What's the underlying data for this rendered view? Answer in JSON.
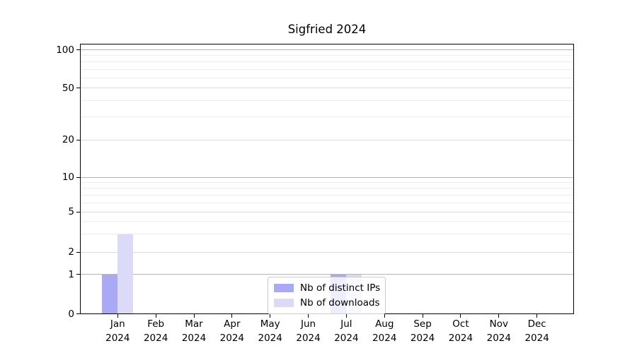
{
  "chart_data": {
    "type": "bar",
    "title": "Sigfried 2024",
    "x": {
      "months": [
        "Jan",
        "Feb",
        "Mar",
        "Apr",
        "May",
        "Jun",
        "Jul",
        "Aug",
        "Sep",
        "Oct",
        "Nov",
        "Dec"
      ],
      "year": "2024"
    },
    "series": [
      {
        "name": "Nb of distinct IPs",
        "color": "#a9a9f5",
        "values": [
          1,
          0,
          0,
          0,
          0,
          0,
          1,
          0,
          0,
          0,
          0,
          0
        ]
      },
      {
        "name": "Nb of downloads",
        "color": "#dbdbf8",
        "values": [
          3,
          0,
          0,
          0,
          0,
          0,
          1,
          0,
          0,
          0,
          0,
          0
        ]
      }
    ],
    "y_axis": {
      "ticks": [
        0,
        1,
        2,
        5,
        10,
        20,
        50,
        100
      ],
      "major_ticks": [
        1,
        10,
        100
      ],
      "minor_gridlines": [
        3,
        4,
        6,
        7,
        8,
        9,
        30,
        40,
        60,
        70,
        80,
        90
      ],
      "scale": "symlog",
      "range": [
        0,
        112
      ],
      "grid": true
    },
    "legend": {
      "position": "lower center"
    }
  },
  "colors": {
    "grid_major": "#b4b4b4",
    "grid_labeled_minor": "#dcdcdc",
    "grid_minor": "#ececec",
    "axis": "#000000",
    "legend_border": "#cccccc",
    "background": "#ffffff"
  }
}
